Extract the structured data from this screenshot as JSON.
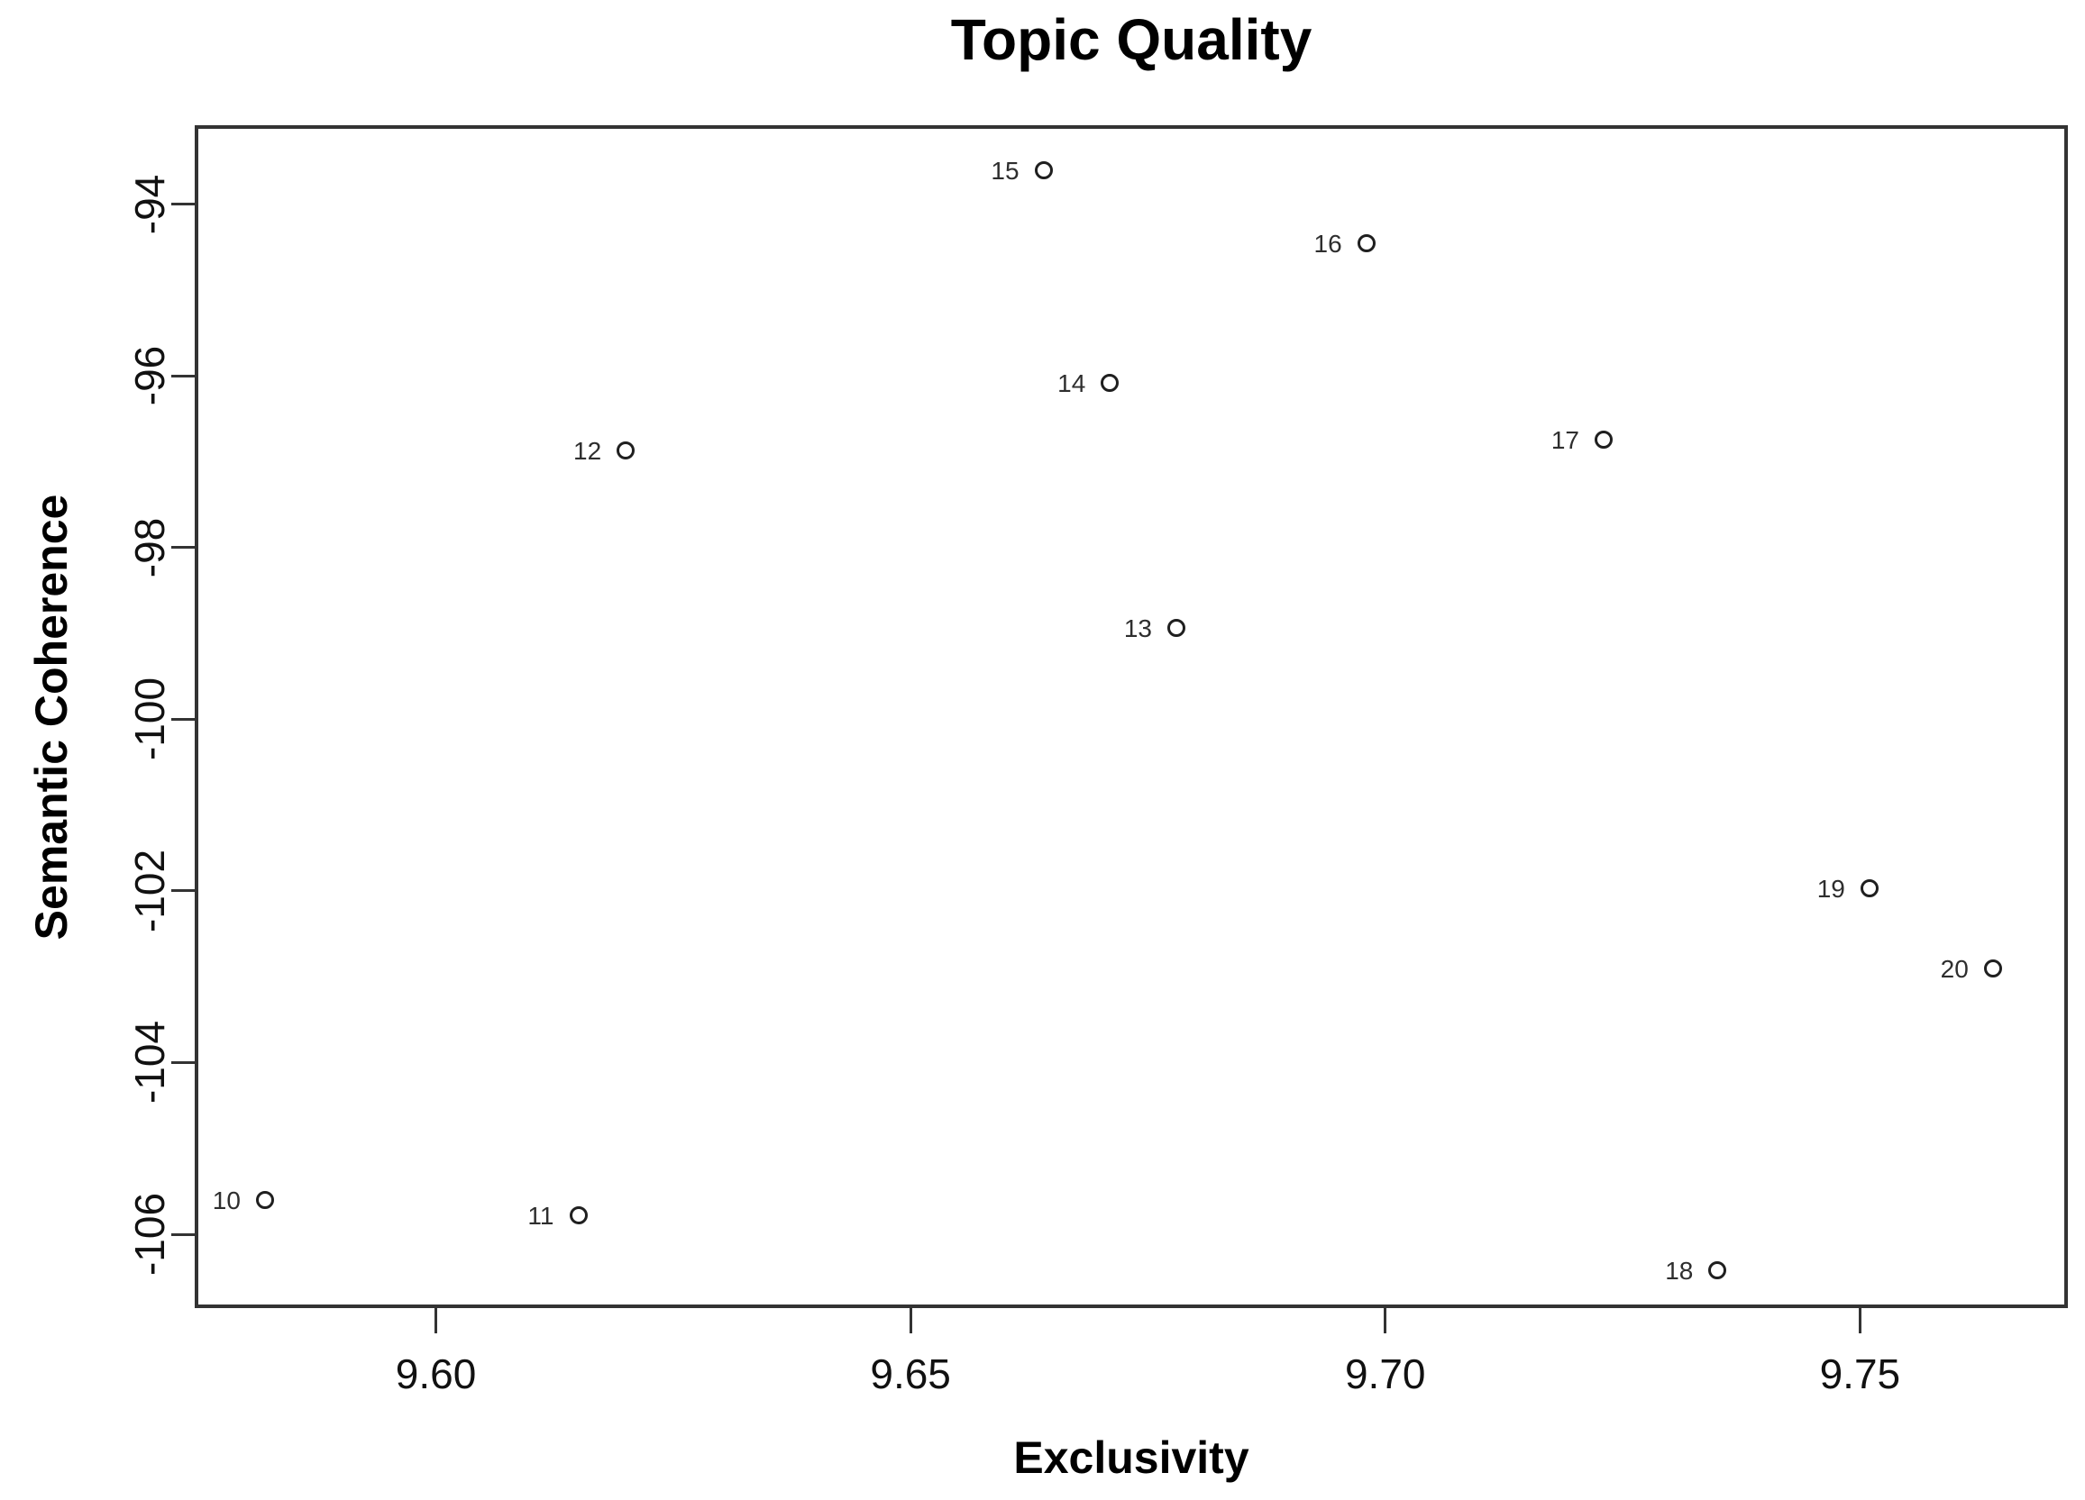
{
  "chart_data": {
    "type": "scatter",
    "title": "Topic Quality",
    "xlabel": "Exclusivity",
    "ylabel": "Semantic Coherence",
    "xlim": [
      9.5746,
      9.7719
    ],
    "ylim": [
      -106.86,
      -93.08
    ],
    "grid": false,
    "legend": "none",
    "marker": "open-circle",
    "x_ticks": [
      {
        "value": 9.6,
        "label": "9.60"
      },
      {
        "value": 9.65,
        "label": "9.65"
      },
      {
        "value": 9.7,
        "label": "9.70"
      },
      {
        "value": 9.75,
        "label": "9.75"
      }
    ],
    "y_ticks": [
      {
        "value": -94,
        "label": "-94"
      },
      {
        "value": -96,
        "label": "-96"
      },
      {
        "value": -98,
        "label": "-98"
      },
      {
        "value": -100,
        "label": "-100"
      },
      {
        "value": -102,
        "label": "-102"
      },
      {
        "value": -104,
        "label": "-104"
      },
      {
        "value": -106,
        "label": "-106"
      }
    ],
    "points": [
      {
        "label": "10",
        "x": 9.582,
        "y": -105.6
      },
      {
        "label": "11",
        "x": 9.615,
        "y": -105.78
      },
      {
        "label": "12",
        "x": 9.62,
        "y": -96.87
      },
      {
        "label": "13",
        "x": 9.678,
        "y": -98.94
      },
      {
        "label": "14",
        "x": 9.671,
        "y": -96.08
      },
      {
        "label": "15",
        "x": 9.664,
        "y": -93.6
      },
      {
        "label": "16",
        "x": 9.698,
        "y": -94.45
      },
      {
        "label": "17",
        "x": 9.723,
        "y": -96.74
      },
      {
        "label": "18",
        "x": 9.735,
        "y": -106.42
      },
      {
        "label": "19",
        "x": 9.751,
        "y": -101.97
      },
      {
        "label": "20",
        "x": 9.764,
        "y": -102.9
      }
    ],
    "colors": {
      "background": "#ffffff",
      "box": "#333333",
      "marker": "#1f1f1f",
      "text": "#000000",
      "point_label_text": "#2e2e2e"
    }
  }
}
